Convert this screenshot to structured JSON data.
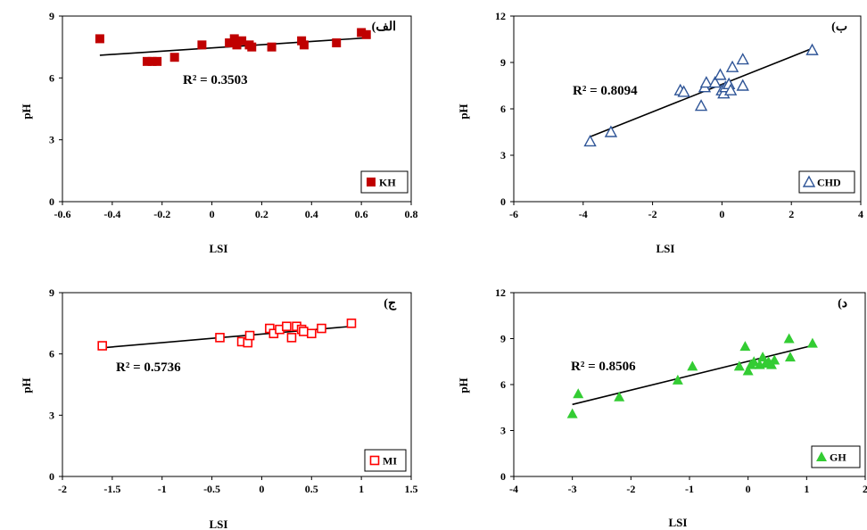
{
  "chart_data": [
    {
      "type": "scatter",
      "panel_label": "(الف",
      "legend": "KH",
      "marker": "filled-square",
      "color": "#c00000",
      "xlabel": "LSI",
      "ylabel": "pH",
      "xlim": [
        -0.6,
        0.8
      ],
      "ylim": [
        0,
        9
      ],
      "xticks": [
        "-0.6",
        "-0.4",
        "-0.2",
        "0",
        "0.2",
        "0.4",
        "0.6",
        "0.8"
      ],
      "yticks": [
        "0",
        "3",
        "6",
        "9"
      ],
      "r2": "R² = 0.3503",
      "points": [
        [
          -0.45,
          7.9
        ],
        [
          -0.26,
          6.8
        ],
        [
          -0.24,
          6.8
        ],
        [
          -0.22,
          6.8
        ],
        [
          -0.15,
          7.0
        ],
        [
          -0.04,
          7.6
        ],
        [
          0.07,
          7.7
        ],
        [
          0.09,
          7.9
        ],
        [
          0.1,
          7.6
        ],
        [
          0.12,
          7.8
        ],
        [
          0.15,
          7.6
        ],
        [
          0.16,
          7.5
        ],
        [
          0.24,
          7.5
        ],
        [
          0.36,
          7.8
        ],
        [
          0.37,
          7.6
        ],
        [
          0.5,
          7.7
        ],
        [
          0.6,
          8.2
        ],
        [
          0.62,
          8.1
        ]
      ],
      "trend": [
        [
          -0.45,
          7.1
        ],
        [
          0.63,
          7.95
        ]
      ]
    },
    {
      "type": "scatter",
      "panel_label": "(ب",
      "legend": "CHD",
      "marker": "open-triangle",
      "color": "#2f5597",
      "xlabel": "LSI",
      "ylabel": "pH",
      "xlim": [
        -6,
        4
      ],
      "ylim": [
        0,
        12
      ],
      "xticks": [
        "-6",
        "-4",
        "-2",
        "0",
        "2",
        "4"
      ],
      "yticks": [
        "0",
        "3",
        "6",
        "9",
        "12"
      ],
      "r2": "R² = 0.8094",
      "points": [
        [
          -3.8,
          3.9
        ],
        [
          -3.2,
          4.5
        ],
        [
          -1.2,
          7.2
        ],
        [
          -1.1,
          7.1
        ],
        [
          -0.6,
          6.2
        ],
        [
          -0.5,
          7.4
        ],
        [
          -0.45,
          7.7
        ],
        [
          -0.2,
          7.7
        ],
        [
          -0.05,
          8.2
        ],
        [
          0.0,
          7.2
        ],
        [
          0.05,
          7.0
        ],
        [
          0.1,
          7.4
        ],
        [
          0.2,
          7.6
        ],
        [
          0.25,
          7.2
        ],
        [
          0.3,
          8.7
        ],
        [
          0.6,
          9.2
        ],
        [
          0.6,
          7.5
        ],
        [
          2.6,
          9.8
        ]
      ],
      "trend": [
        [
          -3.8,
          4.2
        ],
        [
          2.65,
          9.95
        ]
      ]
    },
    {
      "type": "scatter",
      "panel_label": "(ج",
      "legend": "MI",
      "marker": "open-square",
      "color": "#ff0000",
      "xlabel": "LSI",
      "ylabel": "pH",
      "xlim": [
        -2,
        1.5
      ],
      "ylim": [
        0,
        9
      ],
      "xticks": [
        "-2",
        "-1.5",
        "-1",
        "-0.5",
        "0",
        "0.5",
        "1",
        "1.5"
      ],
      "yticks": [
        "0",
        "3",
        "6",
        "9"
      ],
      "r2": "R² = 0.5736",
      "points": [
        [
          -1.6,
          6.4
        ],
        [
          -0.42,
          6.8
        ],
        [
          -0.2,
          6.6
        ],
        [
          -0.14,
          6.55
        ],
        [
          -0.12,
          6.9
        ],
        [
          0.08,
          7.25
        ],
        [
          0.12,
          7.0
        ],
        [
          0.18,
          7.2
        ],
        [
          0.25,
          7.35
        ],
        [
          0.3,
          6.8
        ],
        [
          0.35,
          7.35
        ],
        [
          0.4,
          7.2
        ],
        [
          0.42,
          7.1
        ],
        [
          0.5,
          7.0
        ],
        [
          0.6,
          7.25
        ],
        [
          0.9,
          7.5
        ]
      ],
      "trend": [
        [
          -1.6,
          6.3
        ],
        [
          0.9,
          7.35
        ]
      ]
    },
    {
      "type": "scatter",
      "panel_label": "(د",
      "legend": "GH",
      "marker": "filled-triangle",
      "color": "#33cc33",
      "xlabel": "LSI",
      "ylabel": "pH",
      "xlim": [
        -4,
        2
      ],
      "ylim": [
        0,
        12
      ],
      "xticks": [
        "-4",
        "-3",
        "-2",
        "-1",
        "0",
        "1",
        "2"
      ],
      "yticks": [
        "0",
        "3",
        "6",
        "9",
        "12"
      ],
      "r2": "R² = 0.8506",
      "points": [
        [
          -3.0,
          4.1
        ],
        [
          -2.9,
          5.4
        ],
        [
          -2.2,
          5.2
        ],
        [
          -1.2,
          6.3
        ],
        [
          -0.95,
          7.2
        ],
        [
          -0.15,
          7.2
        ],
        [
          -0.05,
          8.5
        ],
        [
          0.0,
          6.9
        ],
        [
          0.05,
          7.3
        ],
        [
          0.1,
          7.5
        ],
        [
          0.2,
          7.3
        ],
        [
          0.25,
          7.8
        ],
        [
          0.3,
          7.4
        ],
        [
          0.35,
          7.5
        ],
        [
          0.4,
          7.3
        ],
        [
          0.45,
          7.6
        ],
        [
          0.7,
          9.0
        ],
        [
          0.72,
          7.8
        ],
        [
          1.1,
          8.7
        ]
      ],
      "trend": [
        [
          -3.0,
          4.7
        ],
        [
          1.1,
          8.55
        ]
      ]
    }
  ]
}
